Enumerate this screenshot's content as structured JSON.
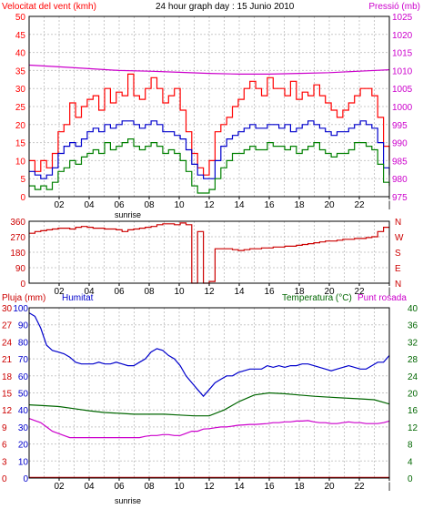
{
  "chart_data": [
    {
      "type": "line",
      "title": "24 hour graph day : 15 Junio 2010",
      "left_axis_label": "Velocitat del vent (kmh)",
      "right_axis_label": "Pressió (mb)",
      "sunrise_label": "sunrise",
      "x_ticks": [
        "02",
        "04",
        "06",
        "08",
        "10",
        "12",
        "14",
        "16",
        "18",
        "20",
        "22",
        "|"
      ],
      "ylim_left": [
        0,
        50
      ],
      "yticks_left": [
        "0",
        "5",
        "10",
        "15",
        "20",
        "25",
        "30",
        "35",
        "40",
        "45",
        "50"
      ],
      "ylim_right": [
        975,
        1025
      ],
      "yticks_right": [
        "975",
        "980",
        "985",
        "990",
        "995",
        "1000",
        "1005",
        "1010",
        "1015",
        "1020",
        "1025"
      ],
      "colors": {
        "gust": "#ff0000",
        "average": "#0000cc",
        "minimum": "#008000",
        "pressure": "#cc00cc"
      },
      "series": [
        {
          "key": "gust",
          "values": [
            10,
            7,
            10,
            8,
            12,
            18,
            20,
            26,
            22,
            25,
            27,
            28,
            24,
            30,
            26,
            29,
            28,
            34,
            28,
            27,
            30,
            33,
            30,
            26,
            28,
            30,
            24,
            18,
            12,
            8,
            6,
            10,
            18,
            20,
            22,
            25,
            27,
            30,
            32,
            30,
            28,
            33,
            30,
            30,
            28,
            32,
            27,
            29,
            28,
            31,
            28,
            26,
            24,
            22,
            24,
            26,
            28,
            30,
            30,
            28,
            22,
            14,
            10
          ]
        },
        {
          "key": "average",
          "values": [
            7,
            6,
            5,
            6,
            8,
            12,
            14,
            15,
            14,
            16,
            18,
            19,
            18,
            20,
            19,
            20,
            21,
            21,
            20,
            19,
            20,
            21,
            20,
            18,
            18,
            17,
            16,
            13,
            9,
            6,
            5,
            5,
            10,
            14,
            16,
            17,
            18,
            19,
            20,
            19,
            19,
            20,
            20,
            19,
            20,
            18,
            19,
            20,
            21,
            20,
            19,
            18,
            17,
            18,
            18,
            19,
            20,
            21,
            20,
            19,
            15,
            8,
            6
          ]
        },
        {
          "key": "minimum",
          "values": [
            3,
            2,
            3,
            2,
            4,
            7,
            8,
            10,
            9,
            11,
            12,
            13,
            12,
            15,
            13,
            14,
            15,
            16,
            14,
            13,
            14,
            15,
            14,
            12,
            13,
            12,
            10,
            7,
            3,
            1,
            1,
            2,
            5,
            8,
            10,
            12,
            12,
            13,
            14,
            13,
            13,
            15,
            14,
            14,
            13,
            14,
            12,
            13,
            14,
            15,
            13,
            12,
            11,
            12,
            12,
            13,
            15,
            15,
            14,
            13,
            9,
            4,
            3
          ]
        },
        {
          "key": "pressure",
          "x": [
            0,
            2,
            4,
            6,
            8,
            10,
            12,
            14,
            16,
            18,
            20,
            22,
            24
          ],
          "values": [
            1011.5,
            1011,
            1010.5,
            1010,
            1009.8,
            1009.5,
            1009.2,
            1009,
            1009,
            1009.2,
            1009.4,
            1009.8,
            1010.2
          ]
        }
      ]
    },
    {
      "type": "line",
      "yticks": [
        "0",
        "90",
        "180",
        "270",
        "360"
      ],
      "ylim": [
        0,
        360
      ],
      "compass": [
        "N",
        "W",
        "S",
        "E",
        "N"
      ],
      "x_ticks": [
        "02",
        "04",
        "06",
        "08",
        "10",
        "12",
        "14",
        "16",
        "18",
        "20",
        "22",
        "|"
      ],
      "color": "#cc0000",
      "series": [
        {
          "key": "direction",
          "values": [
            290,
            300,
            305,
            310,
            315,
            320,
            320,
            315,
            325,
            330,
            325,
            320,
            320,
            315,
            315,
            310,
            300,
            310,
            315,
            320,
            325,
            330,
            340,
            345,
            345,
            340,
            350,
            340,
            0,
            300,
            0,
            10,
            200,
            200,
            200,
            195,
            190,
            195,
            200,
            200,
            205,
            205,
            210,
            210,
            215,
            215,
            220,
            225,
            230,
            235,
            240,
            245,
            245,
            250,
            255,
            255,
            260,
            260,
            265,
            270,
            300,
            325,
            325
          ]
        }
      ]
    },
    {
      "type": "line",
      "rain_label": "Pluja (mm)",
      "humidity_label": "Humitat",
      "temp_label": "Temperatura (°C)",
      "dew_label": "Punt rosada",
      "sunrise_label": "sunrise",
      "x_ticks": [
        "02",
        "04",
        "06",
        "08",
        "10",
        "12",
        "14",
        "16",
        "18",
        "20",
        "22",
        "|"
      ],
      "ylim_rain": [
        0,
        30
      ],
      "yticks_rain": [
        "0",
        "3",
        "6",
        "9",
        "12",
        "15",
        "18",
        "21",
        "24",
        "27",
        "30"
      ],
      "ylim_humidity": [
        0,
        100
      ],
      "yticks_humidity": [
        "0",
        "10",
        "20",
        "30",
        "40",
        "50",
        "60",
        "70",
        "80",
        "90",
        "100"
      ],
      "ylim_temp": [
        0,
        40
      ],
      "yticks_temp": [
        "0",
        "4",
        "8",
        "12",
        "16",
        "20",
        "24",
        "28",
        "32",
        "36",
        "40"
      ],
      "colors": {
        "rain": "#cc0000",
        "humidity": "#0000cc",
        "temperature": "#006600",
        "dew": "#cc00cc"
      },
      "series": [
        {
          "key": "humidity",
          "values": [
            97,
            95,
            88,
            78,
            75,
            74,
            73,
            71,
            68,
            67,
            67,
            67,
            68,
            67,
            67,
            68,
            67,
            66,
            66,
            68,
            70,
            74,
            76,
            75,
            72,
            70,
            66,
            60,
            56,
            52,
            48,
            52,
            56,
            58,
            60,
            60,
            62,
            63,
            64,
            64,
            64,
            66,
            65,
            66,
            65,
            66,
            66,
            67,
            67,
            66,
            65,
            64,
            63,
            64,
            65,
            66,
            65,
            64,
            64,
            66,
            68,
            68,
            72
          ]
        },
        {
          "key": "temperature",
          "x": [
            0,
            1,
            2,
            3,
            4,
            5,
            6,
            7,
            8,
            9,
            10,
            11,
            12,
            13,
            14,
            15,
            16,
            17,
            18,
            19,
            20,
            21,
            22,
            23,
            24
          ],
          "values": [
            17.2,
            17,
            16.8,
            16.3,
            15.8,
            15.4,
            15.2,
            15,
            15,
            15,
            14.8,
            14.6,
            14.6,
            16,
            18,
            19.5,
            20,
            19.8,
            19.5,
            19.2,
            19,
            18.8,
            18.6,
            18.4,
            17.4
          ]
        },
        {
          "key": "dew",
          "values": [
            14,
            13.5,
            13,
            12,
            11,
            10.5,
            10,
            9.5,
            9.5,
            9.5,
            9.5,
            9.5,
            9.5,
            9.5,
            9.5,
            9.5,
            9.5,
            9.5,
            9.5,
            9.5,
            9.8,
            10,
            10,
            10.2,
            10.2,
            10,
            10,
            10.5,
            11,
            11,
            11.5,
            11.6,
            11.8,
            12,
            12,
            12.2,
            12.4,
            12.5,
            12.6,
            12.6,
            12.7,
            12.8,
            13,
            13,
            13.2,
            13.2,
            13.4,
            13.4,
            13.5,
            13.2,
            13,
            13,
            12.8,
            12.8,
            13,
            13.2,
            13,
            13,
            12.8,
            12.8,
            12.8,
            13,
            13.4
          ]
        },
        {
          "key": "rain",
          "values": [
            0.1,
            0.1
          ]
        }
      ]
    }
  ]
}
